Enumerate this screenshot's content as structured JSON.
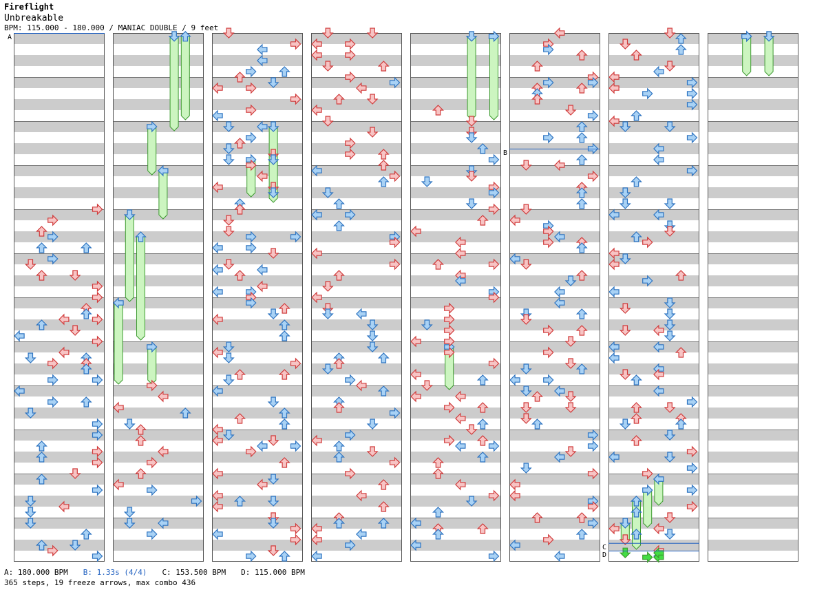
{
  "header": {
    "title": "Fireflight",
    "artist": "Unbreakable",
    "info": "BPM: 115.000 - 180.000 / MANIAC DOUBLE / 9 feet"
  },
  "markers": [
    {
      "label": "A",
      "column": 0,
      "beat": 0
    },
    {
      "label": "B",
      "column": 5,
      "beat": 10.5
    },
    {
      "label": "C",
      "column": 6,
      "beat": 46.3
    },
    {
      "label": "D",
      "column": 6,
      "beat": 47.0
    }
  ],
  "legend": {
    "a": "A: 180.000 BPM",
    "b": "B: 1.33s (4/4)",
    "c": "C: 153.500 BPM",
    "d": "D: 115.000 BPM"
  },
  "summary": "365 steps, 19 freeze arrows, max combo 436",
  "colors": {
    "red_fill": "#f7c4c4",
    "red_stroke": "#d03a3a",
    "blue_fill": "#a9d2f5",
    "blue_stroke": "#2d73c0",
    "green_fill": "#ccf5c0",
    "green_stroke": "#3d9a30",
    "green_done": "#44dd44",
    "stripe": "#cccccc",
    "stop_line": "#2060c0"
  },
  "chart_data": {
    "type": "step-chart",
    "mode": "MANIAC DOUBLE",
    "lanes": 8,
    "columns": 8,
    "beats_per_column": 48,
    "steps": 365,
    "freeze_arrows": 19,
    "max_combo": 436
  }
}
